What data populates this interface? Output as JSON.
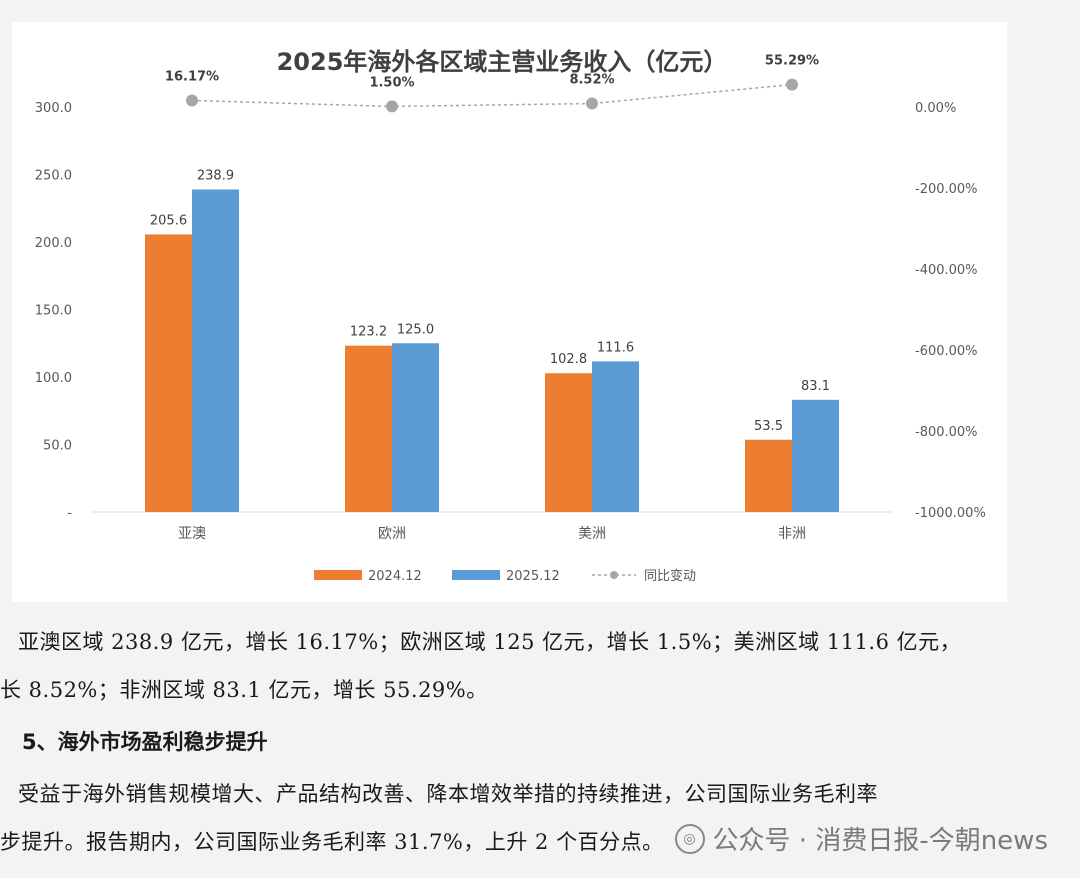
{
  "chart_data": {
    "type": "bar",
    "title": "2025年海外各区域主营业务收入（亿元）",
    "categories": [
      "亚澳",
      "欧洲",
      "美洲",
      "非洲"
    ],
    "series": [
      {
        "name": "2024.12",
        "values": [
          205.6,
          123.2,
          102.8,
          53.5
        ],
        "color": "#ED7D31",
        "labels": [
          "205.6",
          "123.2",
          "102.8",
          "53.5"
        ]
      },
      {
        "name": "2025.12",
        "values": [
          238.9,
          125.0,
          111.6,
          83.1
        ],
        "color": "#5B9BD5",
        "labels": [
          "238.9",
          "125.0",
          "111.6",
          "83.1"
        ]
      }
    ],
    "line_series": {
      "name": "同比变动",
      "values": [
        16.17,
        1.5,
        8.52,
        55.29
      ],
      "labels": [
        "16.17%",
        "1.50%",
        "8.52%",
        "55.29%"
      ],
      "color": "#A6A6A6",
      "axis": "right"
    },
    "y_left": {
      "min": 0,
      "max": 300,
      "ticks": [
        0,
        50,
        100,
        150,
        200,
        250,
        300
      ],
      "tick_labels": [
        "-",
        "50.0",
        "100.0",
        "150.0",
        "200.0",
        "250.0",
        "300.0"
      ]
    },
    "y_right": {
      "min": -1000,
      "max": 0,
      "ticks": [
        0,
        -200,
        -400,
        -600,
        -800,
        -1000
      ],
      "tick_labels": [
        "0.00%",
        "-200.00%",
        "-400.00%",
        "-600.00%",
        "-800.00%",
        "-1000.00%"
      ]
    },
    "grid": false,
    "legend_position": "bottom"
  },
  "text": {
    "line1": "亚澳区域 238.9 亿元，增长 16.17%；欧洲区域 125 亿元，增长 1.5%；美洲区域 111.6 亿元，",
    "line2": "长 8.52%；非洲区域 83.1 亿元，增长 55.29%。",
    "heading": "5、海外市场盈利稳步提升",
    "line3": "受益于海外销售规模增大、产品结构改善、降本增效举措的持续推进，公司国际业务毛利率",
    "line4": "步提升。报告期内，公司国际业务毛利率 31.7%，上升 2 个百分点。"
  },
  "watermark": {
    "icon": "wechat-icon",
    "text": "公众号 · 消费日报-今朝news"
  }
}
